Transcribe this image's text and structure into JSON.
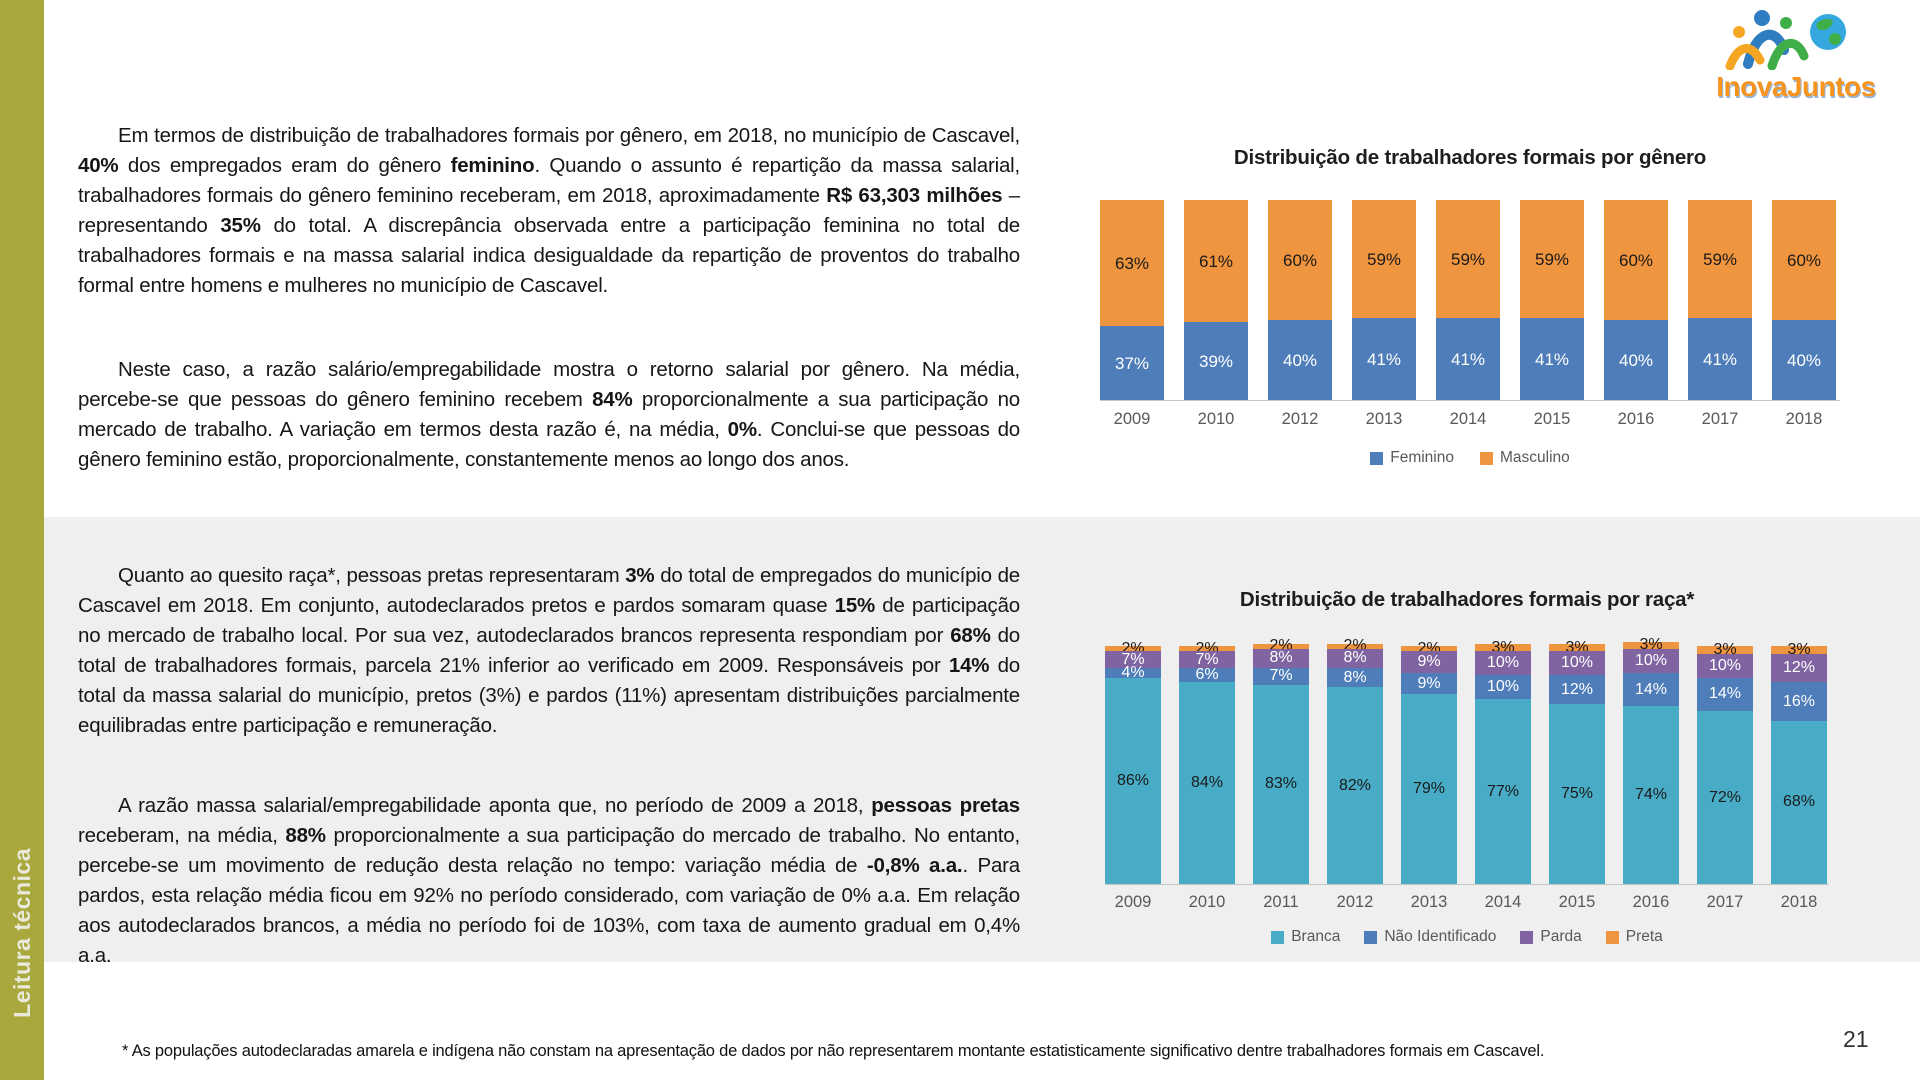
{
  "page": {
    "number": "21",
    "sidebar_label": "Leitura técnica",
    "footnote": "* As populações autodeclaradas amarela e indígena não constam na apresentação de dados por não representarem montante estatisticamente significativo dentre trabalhadores formais em Cascavel.",
    "colors": {
      "sidebar": "#A8A83C",
      "section_band": "#EFEFEF"
    }
  },
  "logo": {
    "wordmark": "InovaJuntos"
  },
  "paragraphs": [
    {
      "id": "gender-overview",
      "text": "Em termos de distribuição de trabalhadores formais por gênero, em 2018, no município de Cascavel, **40%** dos empregados eram do gênero **feminino**. Quando o assunto é repartição da massa salarial, trabalhadores formais do gênero feminino receberam, em 2018, aproximadamente **R$ 63,303 milhões** – representando **35%** do total. A discrepância observada entre a participação feminina no total de trabalhadores formais e na massa salarial indica desigualdade da repartição de proventos do trabalho formal entre homens e mulheres no município de Cascavel."
    },
    {
      "id": "gender-ratio",
      "text": "Neste caso, a razão salário/empregabilidade mostra o retorno salarial por gênero. Na média, percebe-se que pessoas do gênero feminino recebem **84%** proporcionalmente a sua participação no mercado de trabalho. A variação em termos desta razão é, na média, **0%**. Conclui-se que pessoas do gênero feminino estão, proporcionalmente, constantemente menos ao longo dos anos."
    },
    {
      "id": "race-overview",
      "text": "Quanto ao quesito raça*, pessoas pretas representaram **3%** do total de empregados do município de Cascavel em 2018. Em conjunto, autodeclarados pretos e pardos somaram quase **15%** de participação no mercado de trabalho local. Por sua vez, autodeclarados brancos representa respondiam por **68%** do total de trabalhadores formais, parcela 21% inferior ao verificado em 2009. Responsáveis por **14%** do total da massa salarial do município, pretos (3%) e pardos (11%) apresentam distribuições parcialmente equilibradas entre participação e remuneração."
    },
    {
      "id": "race-ratio",
      "text": "A razão massa salarial/empregabilidade aponta que, no período de 2009 a 2018, **pessoas pretas** receberam, na média, **88%** proporcionalmente a sua participação do mercado de trabalho. No entanto, percebe-se um movimento de redução desta relação no tempo: variação média de **-0,8% a.a.**. Para pardos, esta relação média ficou em 92% no período considerado, com variação de 0% a.a. Em relação aos autodeclarados brancos, a média no período foi de 103%, com taxa de aumento gradual em 0,4% a.a."
    }
  ],
  "chart_data": [
    {
      "type": "bar",
      "stacked": true,
      "percent": true,
      "title": "Distribuição de trabalhadores formais por gênero",
      "categories": [
        "2009",
        "2010",
        "2012",
        "2013",
        "2014",
        "2015",
        "2016",
        "2017",
        "2018"
      ],
      "series": [
        {
          "name": "Feminino",
          "color": "#4E7DBA",
          "label_color": "#FFFFFF",
          "values": [
            37,
            39,
            40,
            41,
            41,
            41,
            40,
            41,
            40
          ]
        },
        {
          "name": "Masculino",
          "color": "#F0953F",
          "label_color": "#1A1A1A",
          "values": [
            63,
            61,
            60,
            59,
            59,
            59,
            60,
            59,
            60
          ]
        }
      ],
      "ylim": [
        0,
        100
      ],
      "legend_position": "bottom",
      "grid": false
    },
    {
      "type": "bar",
      "stacked": true,
      "percent": true,
      "title": "Distribuição de trabalhadores formais por raça*",
      "categories": [
        "2009",
        "2010",
        "2011",
        "2012",
        "2013",
        "2014",
        "2015",
        "2016",
        "2017",
        "2018"
      ],
      "series": [
        {
          "name": "Branca",
          "color": "#49ACC6",
          "label_color": "#1A1A1A",
          "values": [
            86,
            84,
            83,
            82,
            79,
            77,
            75,
            74,
            72,
            68
          ]
        },
        {
          "name": "Não Identificado",
          "color": "#4E7DBA",
          "label_color": "#FFFFFF",
          "values": [
            4,
            6,
            7,
            8,
            9,
            10,
            12,
            14,
            14,
            16
          ]
        },
        {
          "name": "Parda",
          "color": "#8064A2",
          "label_color": "#FFFFFF",
          "values": [
            7,
            7,
            8,
            8,
            9,
            10,
            10,
            10,
            10,
            12
          ]
        },
        {
          "name": "Preta",
          "color": "#F0953F",
          "label_color": "#1A1A1A",
          "values": [
            2,
            2,
            2,
            2,
            2,
            3,
            3,
            3,
            3,
            3
          ]
        }
      ],
      "ylim": [
        0,
        100
      ],
      "legend_position": "bottom",
      "grid": false
    }
  ]
}
